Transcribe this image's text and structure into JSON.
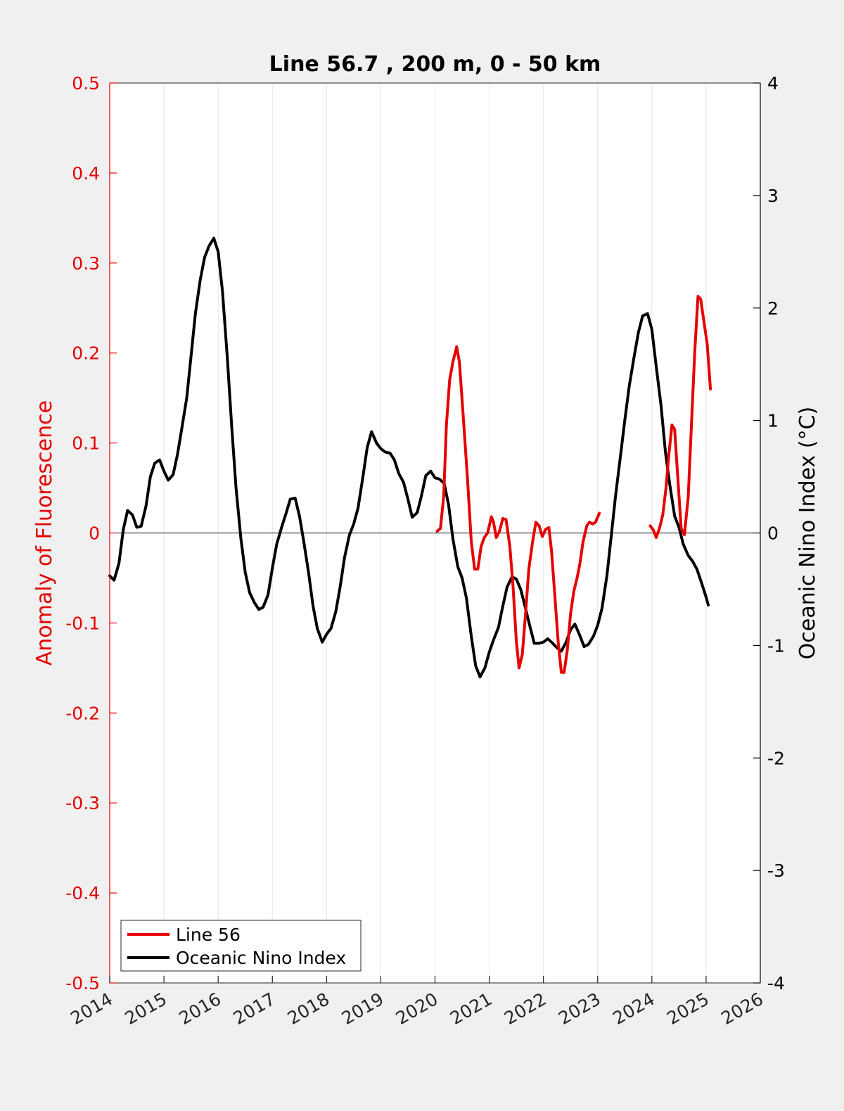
{
  "chart_data": {
    "type": "line",
    "title": "Line 56.7 , 200 m, 0 - 50 km",
    "xlabel": "",
    "ylabel_left": "Anomaly of Fluorescence",
    "ylabel_right": "Oceanic Nino Index (°C)",
    "xlim": [
      2014,
      2026
    ],
    "ylim_left": [
      -0.5,
      0.5
    ],
    "ylim_right": [
      -4,
      4
    ],
    "x_ticks": [
      2014,
      2015,
      2016,
      2017,
      2018,
      2019,
      2020,
      2021,
      2022,
      2023,
      2024,
      2025,
      2026
    ],
    "x_tick_labels": [
      "2014",
      "2015",
      "2016",
      "2017",
      "2018",
      "2019",
      "2020",
      "2021",
      "2022",
      "2023",
      "2024",
      "2025",
      "2026"
    ],
    "y_ticks_left": [
      -0.5,
      -0.4,
      -0.3,
      -0.2,
      -0.1,
      0,
      0.1,
      0.2,
      0.3,
      0.4,
      0.5
    ],
    "y_tick_labels_left": [
      "-0.5",
      "-0.4",
      "-0.3",
      "-0.2",
      "-0.1",
      "0",
      "0.1",
      "0.2",
      "0.3",
      "0.4",
      "0.5"
    ],
    "y_ticks_right": [
      -4,
      -3,
      -2,
      -1,
      0,
      1,
      2,
      3,
      4
    ],
    "y_tick_labels_right": [
      "-4",
      "-3",
      "-2",
      "-1",
      "0",
      "1",
      "2",
      "3",
      "4"
    ],
    "grid": "vertical",
    "legend_position": "bottom-left",
    "zero_line": true,
    "colors": {
      "line56": "#e60000",
      "oni": "#000000",
      "left_axis": "#e60000",
      "right_axis": "#000000",
      "background": "#f0f0f0",
      "plot_bg": "#ffffff"
    },
    "series": [
      {
        "name": "Line 56",
        "axis": "left",
        "segments": [
          [
            [
              2020.04,
              0.002
            ],
            [
              2020.1,
              0.005
            ],
            [
              2020.16,
              0.04
            ],
            [
              2020.21,
              0.12
            ],
            [
              2020.27,
              0.17
            ],
            [
              2020.33,
              0.19
            ],
            [
              2020.4,
              0.207
            ],
            [
              2020.45,
              0.19
            ],
            [
              2020.52,
              0.13
            ],
            [
              2020.6,
              0.06
            ],
            [
              2020.67,
              -0.01
            ],
            [
              2020.73,
              -0.04
            ],
            [
              2020.79,
              -0.04
            ],
            [
              2020.85,
              -0.015
            ],
            [
              2020.91,
              -0.005
            ],
            [
              2020.97,
              0.0
            ],
            [
              2021.04,
              0.018
            ],
            [
              2021.08,
              0.012
            ],
            [
              2021.13,
              -0.005
            ],
            [
              2021.19,
              0.002
            ],
            [
              2021.25,
              0.016
            ],
            [
              2021.31,
              0.015
            ],
            [
              2021.38,
              -0.015
            ],
            [
              2021.44,
              -0.06
            ],
            [
              2021.5,
              -0.12
            ],
            [
              2021.55,
              -0.15
            ],
            [
              2021.61,
              -0.135
            ],
            [
              2021.67,
              -0.09
            ],
            [
              2021.73,
              -0.04
            ],
            [
              2021.8,
              -0.01
            ],
            [
              2021.86,
              0.012
            ],
            [
              2021.92,
              0.008
            ],
            [
              2021.98,
              -0.004
            ],
            [
              2022.04,
              0.004
            ],
            [
              2022.1,
              0.006
            ],
            [
              2022.15,
              -0.02
            ],
            [
              2022.21,
              -0.07
            ],
            [
              2022.27,
              -0.12
            ],
            [
              2022.33,
              -0.155
            ],
            [
              2022.38,
              -0.155
            ],
            [
              2022.44,
              -0.13
            ],
            [
              2022.5,
              -0.09
            ],
            [
              2022.56,
              -0.065
            ],
            [
              2022.62,
              -0.05
            ],
            [
              2022.67,
              -0.035
            ],
            [
              2022.73,
              -0.01
            ],
            [
              2022.8,
              0.008
            ],
            [
              2022.85,
              0.012
            ],
            [
              2022.91,
              0.01
            ],
            [
              2022.96,
              0.012
            ],
            [
              2023.03,
              0.022
            ]
          ],
          [
            [
              2023.97,
              0.008
            ],
            [
              2024.03,
              0.003
            ],
            [
              2024.08,
              -0.005
            ],
            [
              2024.14,
              0.005
            ],
            [
              2024.2,
              0.02
            ],
            [
              2024.26,
              0.05
            ],
            [
              2024.31,
              0.085
            ],
            [
              2024.37,
              0.12
            ],
            [
              2024.42,
              0.115
            ],
            [
              2024.48,
              0.06
            ],
            [
              2024.54,
              0.005
            ],
            [
              2024.6,
              -0.002
            ],
            [
              2024.67,
              0.04
            ],
            [
              2024.73,
              0.12
            ],
            [
              2024.79,
              0.2
            ],
            [
              2024.85,
              0.263
            ],
            [
              2024.9,
              0.26
            ],
            [
              2024.96,
              0.235
            ],
            [
              2025.02,
              0.21
            ],
            [
              2025.08,
              0.16
            ]
          ]
        ]
      },
      {
        "name": "Oceanic Nino Index",
        "axis": "right",
        "segments": [
          [
            [
              2014.0,
              -0.38
            ],
            [
              2014.08,
              -0.42
            ],
            [
              2014.17,
              -0.27
            ],
            [
              2014.25,
              0.03
            ],
            [
              2014.33,
              0.2
            ],
            [
              2014.42,
              0.16
            ],
            [
              2014.5,
              0.05
            ],
            [
              2014.58,
              0.06
            ],
            [
              2014.67,
              0.24
            ],
            [
              2014.75,
              0.5
            ],
            [
              2014.83,
              0.62
            ],
            [
              2014.92,
              0.65
            ],
            [
              2015.0,
              0.55
            ],
            [
              2015.08,
              0.47
            ],
            [
              2015.17,
              0.52
            ],
            [
              2015.25,
              0.7
            ],
            [
              2015.33,
              0.93
            ],
            [
              2015.42,
              1.2
            ],
            [
              2015.5,
              1.57
            ],
            [
              2015.58,
              1.95
            ],
            [
              2015.67,
              2.25
            ],
            [
              2015.75,
              2.45
            ],
            [
              2015.83,
              2.55
            ],
            [
              2015.92,
              2.62
            ],
            [
              2016.0,
              2.5
            ],
            [
              2016.08,
              2.15
            ],
            [
              2016.17,
              1.55
            ],
            [
              2016.25,
              0.95
            ],
            [
              2016.33,
              0.4
            ],
            [
              2016.42,
              -0.05
            ],
            [
              2016.5,
              -0.35
            ],
            [
              2016.58,
              -0.53
            ],
            [
              2016.67,
              -0.62
            ],
            [
              2016.75,
              -0.68
            ],
            [
              2016.83,
              -0.66
            ],
            [
              2016.92,
              -0.55
            ],
            [
              2017.0,
              -0.31
            ],
            [
              2017.08,
              -0.1
            ],
            [
              2017.17,
              0.05
            ],
            [
              2017.25,
              0.17
            ],
            [
              2017.33,
              0.3
            ],
            [
              2017.42,
              0.31
            ],
            [
              2017.5,
              0.15
            ],
            [
              2017.58,
              -0.08
            ],
            [
              2017.67,
              -0.36
            ],
            [
              2017.75,
              -0.65
            ],
            [
              2017.83,
              -0.85
            ],
            [
              2017.92,
              -0.97
            ],
            [
              2018.0,
              -0.9
            ],
            [
              2018.08,
              -0.85
            ],
            [
              2018.17,
              -0.7
            ],
            [
              2018.25,
              -0.48
            ],
            [
              2018.33,
              -0.22
            ],
            [
              2018.42,
              -0.02
            ],
            [
              2018.5,
              0.08
            ],
            [
              2018.58,
              0.22
            ],
            [
              2018.67,
              0.5
            ],
            [
              2018.75,
              0.76
            ],
            [
              2018.83,
              0.9
            ],
            [
              2018.92,
              0.8
            ],
            [
              2019.0,
              0.75
            ],
            [
              2019.08,
              0.72
            ],
            [
              2019.17,
              0.71
            ],
            [
              2019.25,
              0.65
            ],
            [
              2019.33,
              0.53
            ],
            [
              2019.42,
              0.45
            ],
            [
              2019.5,
              0.3
            ],
            [
              2019.58,
              0.14
            ],
            [
              2019.67,
              0.18
            ],
            [
              2019.75,
              0.33
            ],
            [
              2019.83,
              0.51
            ],
            [
              2019.92,
              0.55
            ],
            [
              2020.0,
              0.49
            ],
            [
              2020.08,
              0.48
            ],
            [
              2020.17,
              0.44
            ],
            [
              2020.25,
              0.25
            ],
            [
              2020.33,
              -0.05
            ],
            [
              2020.42,
              -0.3
            ],
            [
              2020.5,
              -0.4
            ],
            [
              2020.58,
              -0.58
            ],
            [
              2020.67,
              -0.92
            ],
            [
              2020.75,
              -1.18
            ],
            [
              2020.83,
              -1.28
            ],
            [
              2020.92,
              -1.2
            ],
            [
              2021.0,
              -1.06
            ],
            [
              2021.08,
              -0.95
            ],
            [
              2021.17,
              -0.84
            ],
            [
              2021.25,
              -0.65
            ],
            [
              2021.33,
              -0.48
            ],
            [
              2021.42,
              -0.39
            ],
            [
              2021.5,
              -0.41
            ],
            [
              2021.58,
              -0.5
            ],
            [
              2021.67,
              -0.67
            ],
            [
              2021.75,
              -0.83
            ],
            [
              2021.83,
              -0.98
            ],
            [
              2021.92,
              -0.98
            ],
            [
              2022.0,
              -0.97
            ],
            [
              2022.08,
              -0.94
            ],
            [
              2022.17,
              -0.98
            ],
            [
              2022.25,
              -1.02
            ],
            [
              2022.33,
              -1.05
            ],
            [
              2022.42,
              -0.97
            ],
            [
              2022.5,
              -0.86
            ],
            [
              2022.58,
              -0.81
            ],
            [
              2022.67,
              -0.91
            ],
            [
              2022.75,
              -1.01
            ],
            [
              2022.83,
              -0.99
            ],
            [
              2022.92,
              -0.92
            ],
            [
              2023.0,
              -0.82
            ],
            [
              2023.08,
              -0.67
            ],
            [
              2023.17,
              -0.38
            ],
            [
              2023.25,
              -0.03
            ],
            [
              2023.33,
              0.33
            ],
            [
              2023.42,
              0.68
            ],
            [
              2023.5,
              1.0
            ],
            [
              2023.58,
              1.3
            ],
            [
              2023.67,
              1.56
            ],
            [
              2023.75,
              1.78
            ],
            [
              2023.83,
              1.93
            ],
            [
              2023.92,
              1.95
            ],
            [
              2024.0,
              1.81
            ],
            [
              2024.08,
              1.48
            ],
            [
              2024.17,
              1.13
            ],
            [
              2024.25,
              0.72
            ],
            [
              2024.33,
              0.43
            ],
            [
              2024.42,
              0.15
            ],
            [
              2024.5,
              0.05
            ],
            [
              2024.58,
              -0.1
            ],
            [
              2024.67,
              -0.2
            ],
            [
              2024.75,
              -0.25
            ],
            [
              2024.83,
              -0.32
            ],
            [
              2024.92,
              -0.45
            ],
            [
              2025.0,
              -0.57
            ],
            [
              2025.04,
              -0.64
            ]
          ]
        ]
      }
    ]
  }
}
